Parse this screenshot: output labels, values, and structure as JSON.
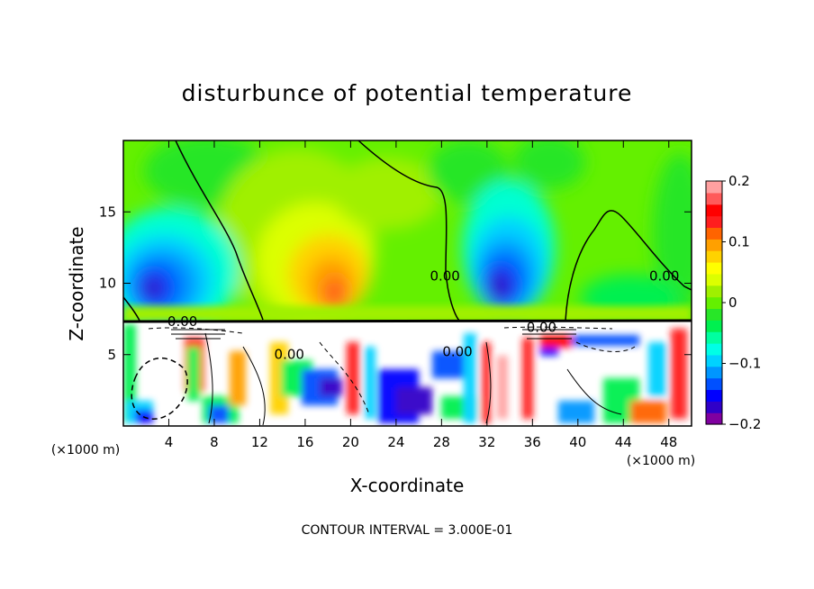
{
  "chart_data": {
    "type": "heatmap",
    "title": "disturbunce of potential temperature",
    "xlabel": "X-coordinate",
    "ylabel": "Z-coordinate",
    "x_unit": "(×1000 m)",
    "x_unit_right": "(×1000 m)",
    "xlim": [
      0,
      50
    ],
    "ylim": [
      0,
      20
    ],
    "x_ticks": [
      4,
      8,
      12,
      16,
      20,
      24,
      28,
      32,
      36,
      40,
      44,
      48
    ],
    "y_ticks": [
      5,
      10,
      15
    ],
    "colorbar": {
      "range": [
        -0.2,
        0.2
      ],
      "ticks": [
        -0.2,
        -0.1,
        0,
        0.1,
        0.2
      ],
      "tick_labels": [
        "−0.2",
        "−0.1",
        "0",
        "0.1",
        "0.2"
      ],
      "colors": [
        "#8000a0",
        "#3000c8",
        "#0000ff",
        "#0050ff",
        "#0096ff",
        "#00d2ff",
        "#00ffe6",
        "#00ffa0",
        "#00f050",
        "#28e628",
        "#64f000",
        "#a0f000",
        "#dcff00",
        "#ffff00",
        "#ffd200",
        "#ffa000",
        "#ff6400",
        "#ff1e1e",
        "#ff0000",
        "#ff5a5a",
        "#ffa0a0"
      ]
    },
    "contour_interval": "CONTOUR INTERVAL = 3.000E-01",
    "contour_labels": [
      {
        "text": "0.00",
        "x": 28.3,
        "z": 10.2
      },
      {
        "text": "0.00",
        "x": 47.6,
        "z": 10.2
      },
      {
        "text": "0.00",
        "x": 14.6,
        "z": 4.7
      },
      {
        "text": "0.00",
        "x": 29.4,
        "z": 4.9
      },
      {
        "text": "0.00",
        "x": 5.2,
        "z": 7.0
      },
      {
        "text": "0.00",
        "x": 36.8,
        "z": 6.6
      }
    ],
    "features": {
      "cold_anomalies_upper": [
        {
          "x": 3.2,
          "z": 10.2,
          "value": -0.17
        },
        {
          "x": 31.5,
          "z": 10.5,
          "value": -0.18
        }
      ],
      "warm_anomaly_upper": {
        "x": 19,
        "z": 10,
        "value": 0.13
      },
      "inversion_height": 7.3
    }
  }
}
